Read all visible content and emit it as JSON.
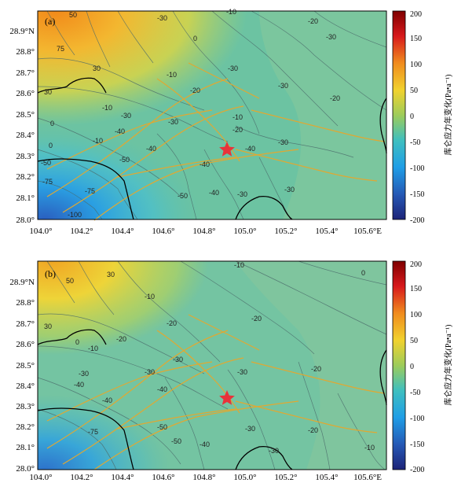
{
  "panels": [
    {
      "id": "a",
      "label": "(a)",
      "x_ticks": [
        "104.0°",
        "104.2°",
        "104.4°",
        "104.6°",
        "104.8°",
        "105.0°",
        "105.2°",
        "105.4°",
        "105.6°E"
      ],
      "y_ticks": [
        "28.9°N",
        "28.8°",
        "28.7°",
        "28.6°",
        "28.5°",
        "28.4°",
        "28.3°",
        "28.2°",
        "28.1°",
        "28.0°"
      ],
      "contour_labels": [
        "50",
        "75",
        "30",
        "-30",
        "-10",
        "0",
        "-20",
        "-30",
        "30",
        "0",
        "-10",
        "-10",
        "-20",
        "-30",
        "-30",
        "-20",
        "-10",
        "-30",
        "-40",
        "-30",
        "-10",
        "0",
        "-20",
        "-30",
        "-40",
        "-50",
        "-40",
        "-50",
        "-30",
        "-40",
        "-50",
        "-75",
        "-75",
        "-100",
        "-40",
        "-30"
      ],
      "epicenter": {
        "lon": 104.9,
        "lat": 28.34
      }
    },
    {
      "id": "b",
      "label": "(b)",
      "x_ticks": [
        "104.0°",
        "104.2°",
        "104.4°",
        "104.6°",
        "104.8°",
        "105.0°",
        "105.2°",
        "105.4°",
        "105.6°E"
      ],
      "y_ticks": [
        "28.9°N",
        "28.8°",
        "28.7°",
        "28.6°",
        "28.5°",
        "28.4°",
        "28.3°",
        "28.2°",
        "28.1°",
        "28.0°"
      ],
      "contour_labels": [
        "50",
        "30",
        "0",
        "30",
        "-10",
        "0",
        "-10",
        "-20",
        "-10",
        "-20",
        "-30",
        "-40",
        "-30",
        "-30",
        "-40",
        "-20",
        "-30",
        "-20",
        "-30",
        "-40",
        "-50",
        "-75",
        "-50",
        "-40",
        "-30",
        "-20",
        "-10"
      ],
      "epicenter": {
        "lon": 104.9,
        "lat": 28.34
      }
    }
  ],
  "colorbar": {
    "ticks": [
      "200",
      "150",
      "100",
      "50",
      "0",
      "-50",
      "-100",
      "-150",
      "-200"
    ],
    "title": "库仑应力年变化(Pa•a⁻¹)",
    "range": [
      -200,
      200
    ]
  },
  "map": {
    "lon_range": [
      104.0,
      105.7
    ],
    "lat_range": [
      27.99,
      28.97
    ],
    "marker_color": "#e8333a",
    "fault_color": "#e0a832",
    "boundary_color": "#000000",
    "contour_color": "#4a6a6a"
  }
}
